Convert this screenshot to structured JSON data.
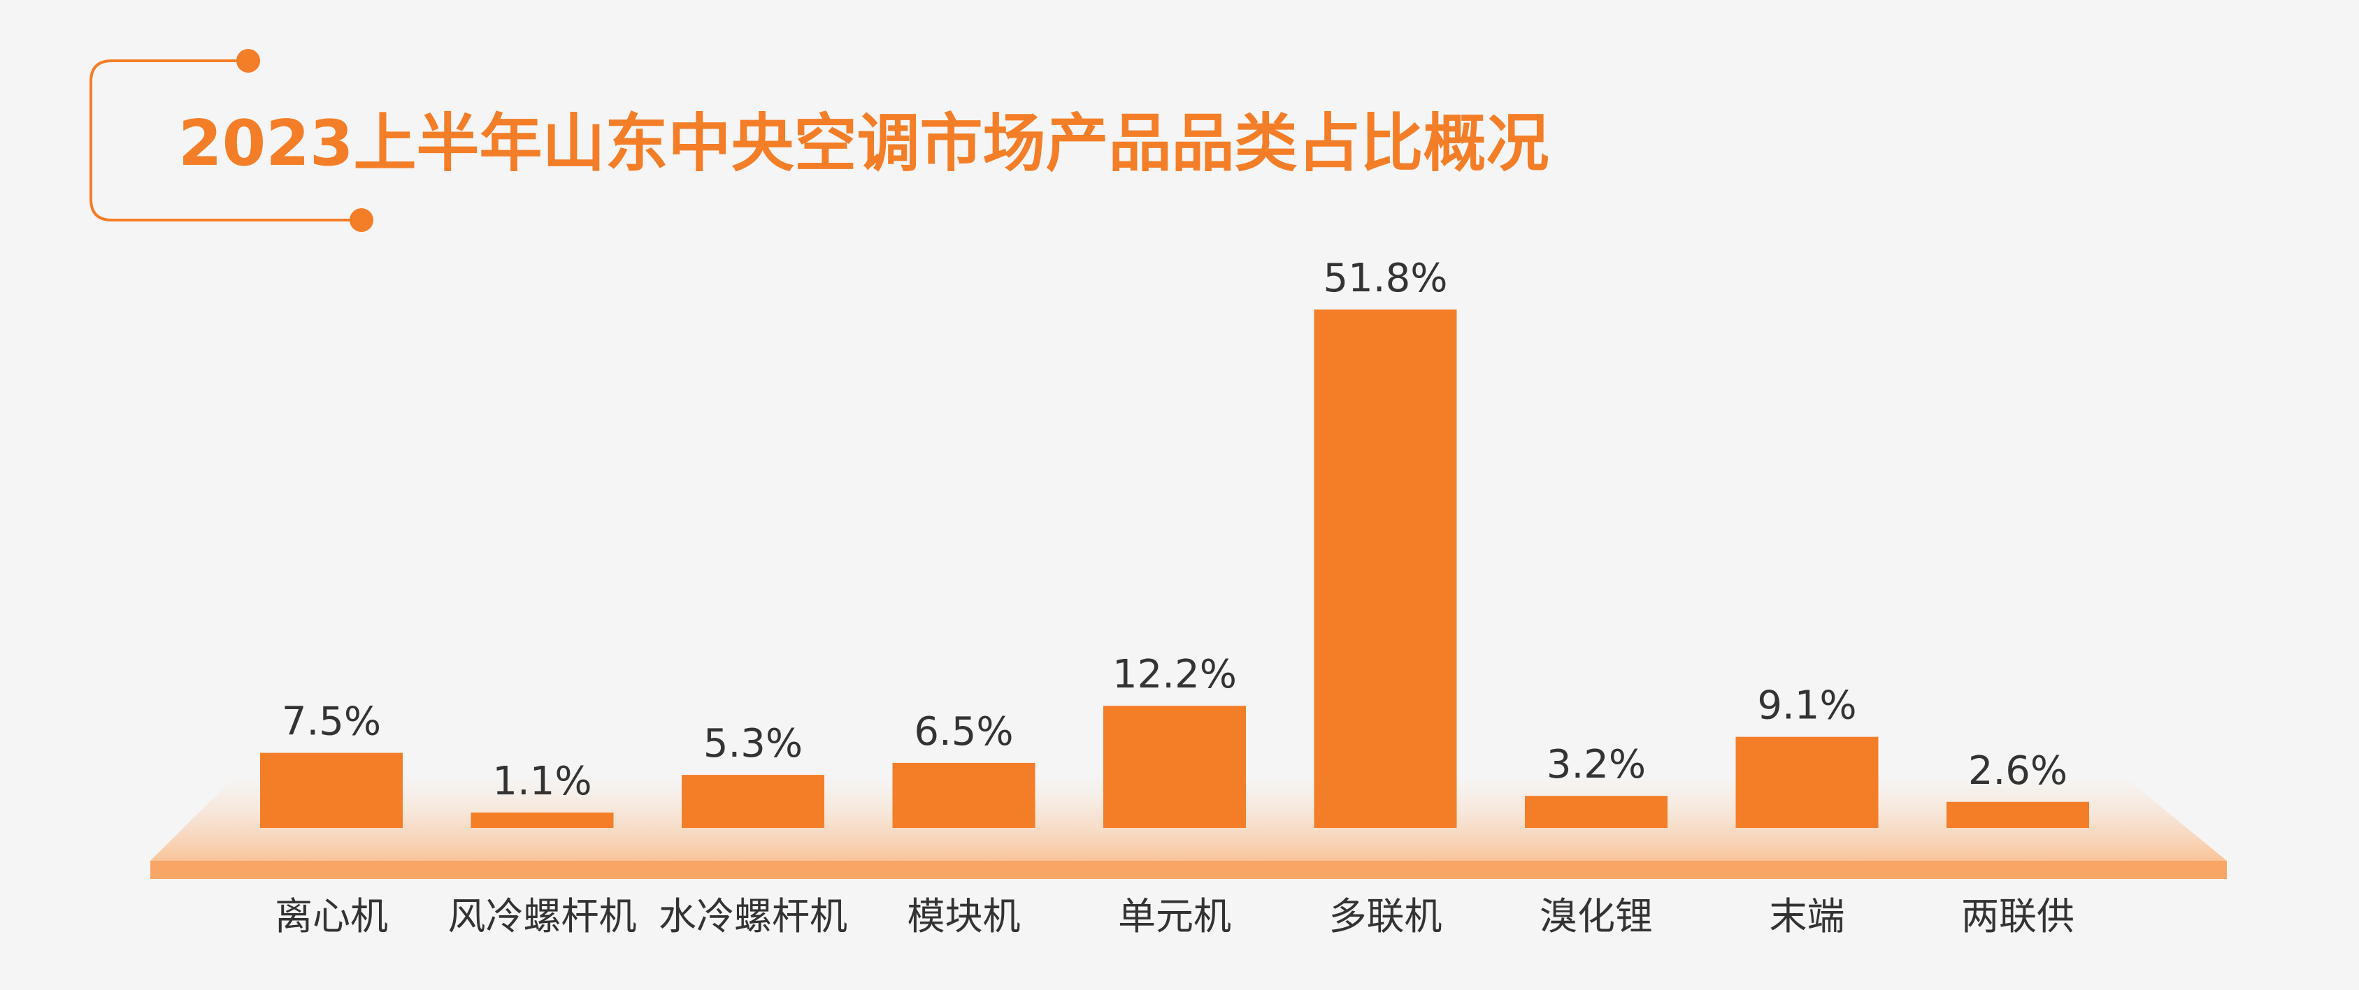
{
  "chart_data": {
    "type": "bar",
    "title": "2023上半年山东中央空调市场产品品类占比概况",
    "categories": [
      "离心机",
      "风冷螺杆机",
      "水冷螺杆机",
      "模块机",
      "单元机",
      "多联机",
      "溴化锂",
      "末端",
      "两联供"
    ],
    "values": [
      7.5,
      1.1,
      5.3,
      6.5,
      12.2,
      51.8,
      3.2,
      9.1,
      2.6
    ],
    "value_labels": [
      "7.5%",
      "1.1%",
      "5.3%",
      "6.5%",
      "12.2%",
      "51.8%",
      "3.2%",
      "9.1%",
      "2.6%"
    ],
    "unit": "%",
    "xlabel": "",
    "ylabel": "",
    "ylim": [
      0,
      51.8
    ],
    "grid": false,
    "legend": "none"
  },
  "colors": {
    "background": "#f5f5f5",
    "accent": "#f47e28",
    "bar": "#f47e28",
    "platform": "#f9a565",
    "text": "#333333"
  }
}
